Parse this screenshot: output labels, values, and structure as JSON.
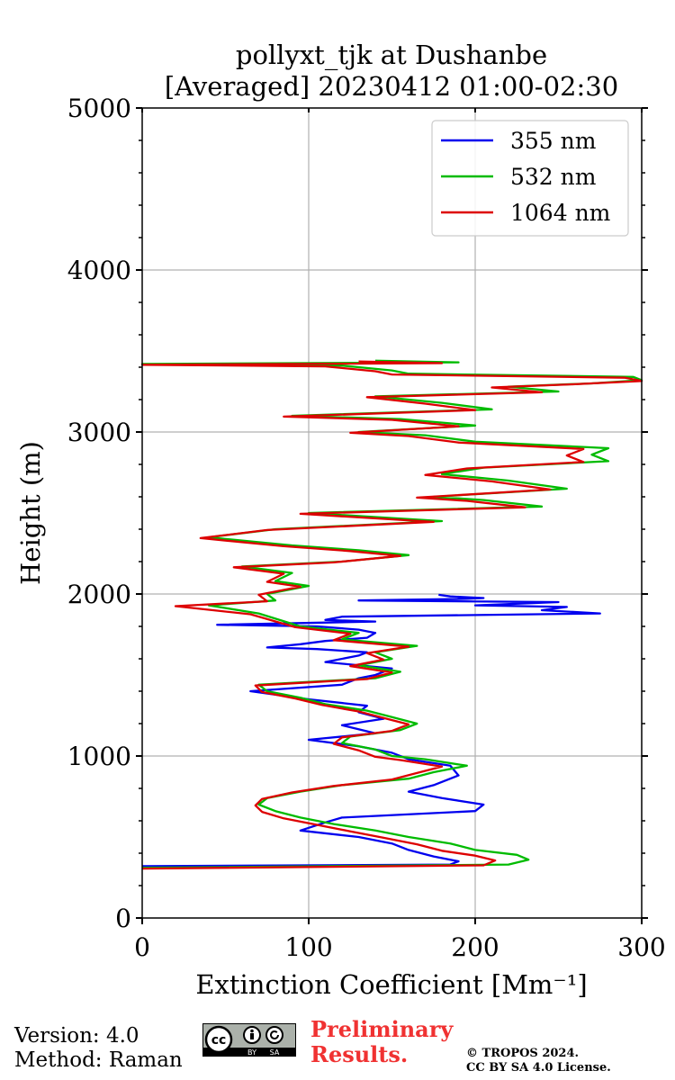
{
  "chart_data": {
    "type": "line",
    "title_line1": "pollyxt_tjk at Dushanbe",
    "title_line2": "[Averaged] 20230412 01:00-02:30",
    "xlabel": "Extinction Coefficient [Mm⁻¹]",
    "ylabel": "Height (m)",
    "xlim": [
      0,
      300
    ],
    "ylim": [
      0,
      5000
    ],
    "xticks": [
      0,
      100,
      200,
      300
    ],
    "yticks": [
      0,
      1000,
      2000,
      3000,
      4000,
      5000
    ],
    "grid": true,
    "legend_position": "top-right",
    "series": [
      {
        "name": "355 nm",
        "color": "#0000ee",
        "x": [
          0,
          185,
          190,
          175,
          160,
          150,
          130,
          95,
          110,
          120,
          200,
          205,
          180,
          160,
          175,
          190,
          185,
          160,
          150,
          130,
          100,
          140,
          120,
          145,
          130,
          135,
          100,
          65,
          120,
          130,
          140,
          150,
          110,
          130,
          135,
          105,
          75,
          95,
          110,
          135,
          140,
          130,
          105,
          45,
          140,
          110,
          120,
          275,
          240,
          255,
          200,
          250,
          130,
          195,
          205,
          185,
          178
        ],
        "y": [
          320,
          330,
          350,
          380,
          420,
          460,
          500,
          540,
          590,
          620,
          660,
          700,
          740,
          780,
          820,
          880,
          940,
          980,
          1020,
          1060,
          1100,
          1140,
          1190,
          1230,
          1270,
          1310,
          1350,
          1400,
          1440,
          1480,
          1500,
          1540,
          1580,
          1620,
          1640,
          1660,
          1670,
          1690,
          1710,
          1730,
          1760,
          1780,
          1800,
          1810,
          1830,
          1840,
          1860,
          1880,
          1900,
          1920,
          1930,
          1950,
          1960,
          1970,
          1975,
          1985,
          1995
        ]
      },
      {
        "name": "532 nm",
        "color": "#00bb00",
        "x": [
          0,
          220,
          232,
          225,
          200,
          185,
          160,
          140,
          115,
          95,
          80,
          70,
          75,
          95,
          120,
          160,
          175,
          195,
          170,
          150,
          140,
          120,
          125,
          155,
          165,
          150,
          135,
          110,
          95,
          75,
          70,
          140,
          155,
          130,
          150,
          140,
          165,
          120,
          130,
          95,
          70,
          40,
          80,
          75,
          100,
          80,
          90,
          60,
          120,
          160,
          130,
          90,
          40,
          80,
          180,
          100,
          240,
          205,
          175,
          255,
          220,
          180,
          205,
          280,
          270,
          280,
          200,
          170,
          130,
          200,
          155,
          90,
          210,
          180,
          140,
          250,
          220,
          270,
          300,
          295,
          160,
          150,
          130,
          120,
          0,
          190,
          140
        ],
        "y": [
          310,
          330,
          360,
          390,
          420,
          460,
          500,
          540,
          580,
          620,
          660,
          700,
          740,
          780,
          820,
          860,
          900,
          940,
          980,
          1000,
          1040,
          1080,
          1120,
          1160,
          1200,
          1240,
          1280,
          1320,
          1360,
          1400,
          1440,
          1480,
          1520,
          1560,
          1600,
          1640,
          1680,
          1720,
          1760,
          1800,
          1880,
          1930,
          1960,
          2000,
          2050,
          2080,
          2130,
          2170,
          2200,
          2240,
          2270,
          2300,
          2350,
          2400,
          2450,
          2500,
          2540,
          2580,
          2600,
          2650,
          2700,
          2740,
          2780,
          2820,
          2860,
          2900,
          2940,
          2980,
          3000,
          3040,
          3080,
          3100,
          3140,
          3180,
          3220,
          3250,
          3280,
          3300,
          3320,
          3340,
          3360,
          3380,
          3400,
          3410,
          3420,
          3430,
          3440
        ]
      },
      {
        "name": "1064 nm",
        "color": "#dd0000",
        "x": [
          0,
          205,
          212,
          200,
          180,
          165,
          145,
          125,
          105,
          85,
          72,
          68,
          72,
          90,
          115,
          150,
          165,
          180,
          155,
          140,
          130,
          115,
          120,
          150,
          160,
          145,
          130,
          108,
          92,
          72,
          68,
          135,
          150,
          125,
          145,
          135,
          160,
          115,
          125,
          92,
          65,
          20,
          75,
          70,
          95,
          75,
          85,
          55,
          115,
          155,
          125,
          85,
          35,
          75,
          175,
          95,
          230,
          195,
          165,
          245,
          210,
          170,
          195,
          265,
          255,
          265,
          190,
          160,
          125,
          190,
          150,
          85,
          200,
          170,
          135,
          240,
          210,
          260,
          300,
          290,
          150,
          140,
          120,
          110,
          0,
          180,
          130
        ],
        "y": [
          305,
          325,
          355,
          385,
          415,
          455,
          495,
          535,
          575,
          615,
          655,
          695,
          735,
          775,
          815,
          855,
          895,
          935,
          975,
          995,
          1035,
          1075,
          1115,
          1155,
          1195,
          1235,
          1275,
          1315,
          1355,
          1395,
          1435,
          1475,
          1515,
          1555,
          1595,
          1635,
          1675,
          1715,
          1755,
          1795,
          1875,
          1925,
          1955,
          1995,
          2045,
          2075,
          2125,
          2165,
          2195,
          2235,
          2265,
          2295,
          2345,
          2395,
          2445,
          2495,
          2535,
          2575,
          2595,
          2645,
          2695,
          2735,
          2775,
          2815,
          2855,
          2895,
          2935,
          2975,
          2995,
          3035,
          3075,
          3095,
          3135,
          3175,
          3215,
          3245,
          3275,
          3295,
          3315,
          3335,
          3355,
          3375,
          3395,
          3405,
          3415,
          3425,
          3435
        ]
      }
    ]
  },
  "footer": {
    "version": "Version: 4.0",
    "method": "Method: Raman",
    "preliminary_line1": "Preliminary",
    "preliminary_line2": "Results.",
    "copyright_line1": "© TROPOS 2024.",
    "copyright_line2": "CC BY SA 4.0 License.",
    "badge_cc": "cc",
    "badge_by": "BY",
    "badge_sa": "SA"
  }
}
